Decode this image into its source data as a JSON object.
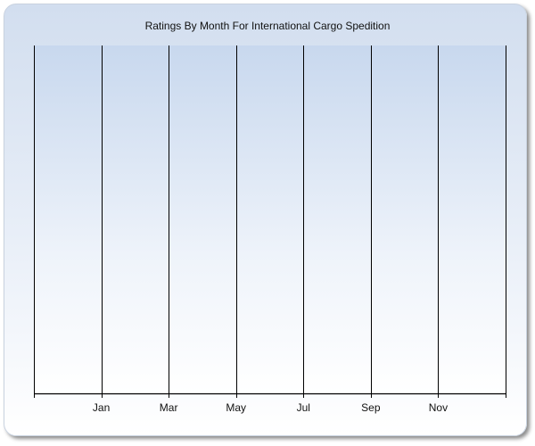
{
  "chart_data": {
    "type": "bar",
    "title": "Ratings By Month For International Cargo Spedition",
    "categories": [
      "Jan",
      "Mar",
      "May",
      "Jul",
      "Sep",
      "Nov"
    ],
    "series": [],
    "xlabel": "",
    "ylabel": "",
    "grid": "vertical",
    "legend": "none",
    "colors": {
      "background_top": "#d2deef",
      "plot_top": "#c8d8ee",
      "background_bottom": "#ffffff",
      "lines": "#000000"
    }
  }
}
